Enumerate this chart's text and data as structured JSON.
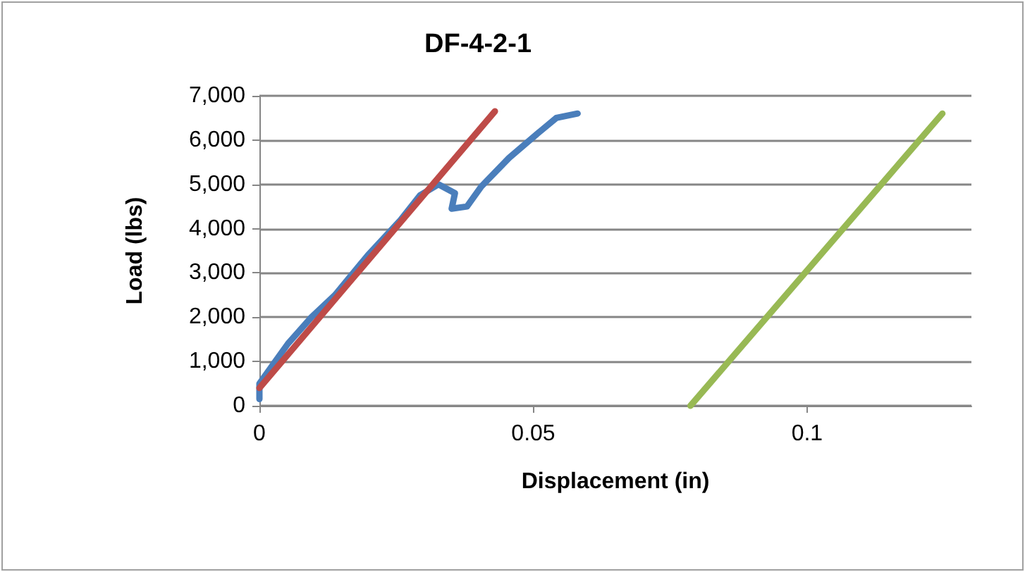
{
  "chart_data": {
    "type": "line",
    "title": "DF-4-2-1",
    "xlabel": "Displacement (in)",
    "ylabel": "Load (lbs)",
    "xlim": [
      0,
      0.13
    ],
    "xticks": [
      0,
      0.05,
      0.1
    ],
    "ylim": [
      0,
      7000
    ],
    "yticks": [
      {
        "value": 0,
        "label": "0"
      },
      {
        "value": 1000,
        "label": "1,000"
      },
      {
        "value": 2000,
        "label": "2,000"
      },
      {
        "value": 3000,
        "label": "3,000"
      },
      {
        "value": 4000,
        "label": "4,000"
      },
      {
        "value": 5000,
        "label": "5,000"
      },
      {
        "value": 6000,
        "label": "6,000"
      },
      {
        "value": 7000,
        "label": "7,000"
      }
    ],
    "grid": "y",
    "marker": "none",
    "line_style": "solid",
    "series": [
      {
        "color": "#4a7ebb",
        "x": [
          0,
          0,
          0.0052,
          0.0095,
          0.0138,
          0.0198,
          0.0258,
          0.0293,
          0.0327,
          0.0357,
          0.0351,
          0.0379,
          0.0405,
          0.0456,
          0.0508,
          0.0542,
          0.0581
        ],
        "values": [
          150,
          500,
          1400,
          2000,
          2500,
          3400,
          4200,
          4750,
          5000,
          4800,
          4450,
          4500,
          4950,
          5600,
          6150,
          6500,
          6600
        ]
      },
      {
        "color": "#be4b48",
        "x": [
          0,
          0.043
        ],
        "values": [
          400,
          6650
        ]
      },
      {
        "color": "#98b954",
        "x": [
          0.0787,
          0.1247
        ],
        "values": [
          0,
          6600
        ]
      }
    ]
  }
}
